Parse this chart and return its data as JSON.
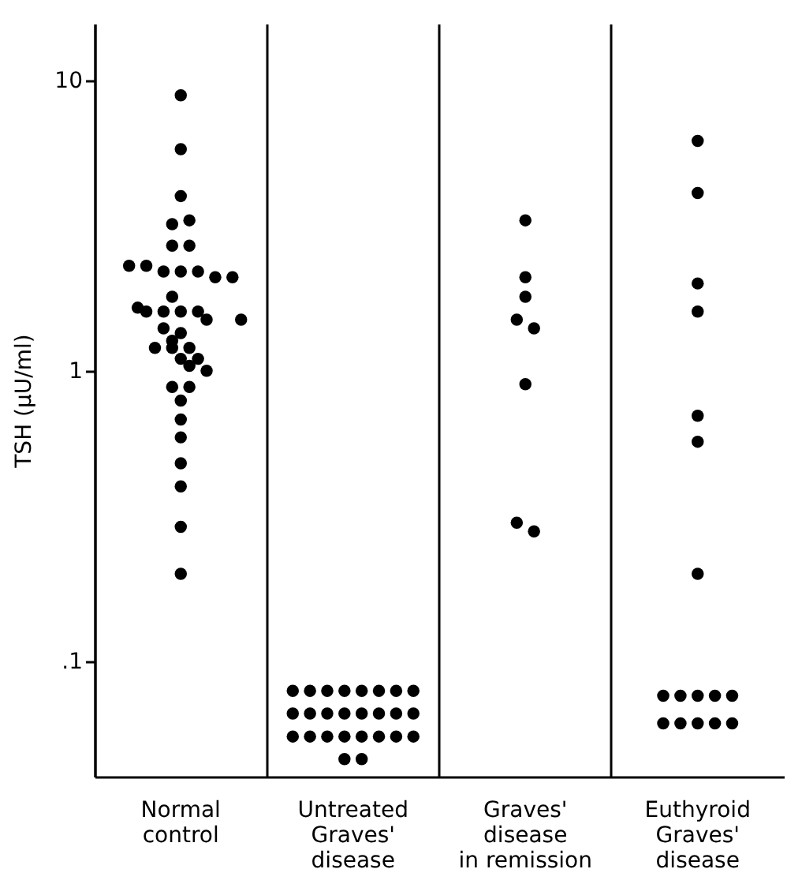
{
  "chart_data": {
    "type": "scatter",
    "ylabel": "TSH (µU/ml)",
    "categories": [
      "Normal\ncontrol",
      "Untreated\nGraves'\ndisease",
      "Graves'\ndisease\nin remission",
      "Euthyroid\nGraves'\ndisease"
    ],
    "log": true,
    "ylim": [
      0.04,
      15.7
    ],
    "yticks": [
      10,
      1,
      {
        "value": 0.1,
        "label": ".1"
      }
    ],
    "grid": "x",
    "marker": "circle",
    "series": [
      {
        "color": "#000000",
        "x": [
          "Normal\ncontrol",
          "Normal\ncontrol",
          "Normal\ncontrol",
          "Normal\ncontrol",
          "Normal\ncontrol",
          "Normal\ncontrol",
          "Normal\ncontrol",
          "Normal\ncontrol",
          "Normal\ncontrol",
          "Normal\ncontrol",
          "Normal\ncontrol",
          "Normal\ncontrol",
          "Normal\ncontrol",
          "Normal\ncontrol",
          "Normal\ncontrol",
          "Normal\ncontrol",
          "Normal\ncontrol",
          "Normal\ncontrol",
          "Normal\ncontrol",
          "Normal\ncontrol",
          "Normal\ncontrol",
          "Normal\ncontrol",
          "Normal\ncontrol",
          "Normal\ncontrol",
          "Normal\ncontrol",
          "Normal\ncontrol",
          "Normal\ncontrol",
          "Normal\ncontrol",
          "Normal\ncontrol",
          "Normal\ncontrol",
          "Normal\ncontrol",
          "Normal\ncontrol",
          "Normal\ncontrol",
          "Normal\ncontrol",
          "Normal\ncontrol",
          "Normal\ncontrol",
          "Normal\ncontrol",
          "Normal\ncontrol",
          "Normal\ncontrol",
          "Normal\ncontrol",
          "Normal\ncontrol"
        ],
        "values": [
          8.9,
          5.8,
          4.0,
          3.2,
          3.3,
          2.7,
          2.7,
          2.3,
          2.3,
          2.2,
          2.2,
          2.2,
          2.1,
          2.1,
          1.8,
          1.65,
          1.6,
          1.6,
          1.6,
          1.6,
          1.5,
          1.4,
          1.35,
          1.27,
          1.2,
          1.2,
          1.2,
          1.1,
          1.1,
          1.04,
          1.0,
          0.88,
          0.88,
          0.79,
          0.68,
          0.59,
          0.48,
          0.4,
          0.29,
          0.2,
          1.5
        ]
      },
      {
        "color": "#000000",
        "x": [
          "Untreated\nGraves'\ndisease",
          "Untreated\nGraves'\ndisease",
          "Untreated\nGraves'\ndisease",
          "Untreated\nGraves'\ndisease",
          "Untreated\nGraves'\ndisease",
          "Untreated\nGraves'\ndisease",
          "Untreated\nGraves'\ndisease",
          "Untreated\nGraves'\ndisease",
          "Untreated\nGraves'\ndisease",
          "Untreated\nGraves'\ndisease",
          "Untreated\nGraves'\ndisease",
          "Untreated\nGraves'\ndisease",
          "Untreated\nGraves'\ndisease",
          "Untreated\nGraves'\ndisease",
          "Untreated\nGraves'\ndisease",
          "Untreated\nGraves'\ndisease",
          "Untreated\nGraves'\ndisease",
          "Untreated\nGraves'\ndisease",
          "Untreated\nGraves'\ndisease",
          "Untreated\nGraves'\ndisease",
          "Untreated\nGraves'\ndisease",
          "Untreated\nGraves'\ndisease",
          "Untreated\nGraves'\ndisease",
          "Untreated\nGraves'\ndisease",
          "Untreated\nGraves'\ndisease",
          "Untreated\nGraves'\ndisease"
        ],
        "values": [
          0.079,
          0.079,
          0.079,
          0.079,
          0.079,
          0.079,
          0.079,
          0.079,
          0.066,
          0.066,
          0.066,
          0.066,
          0.066,
          0.066,
          0.066,
          0.066,
          0.055,
          0.055,
          0.055,
          0.055,
          0.055,
          0.055,
          0.055,
          0.055,
          0.046,
          0.046
        ]
      },
      {
        "color": "#000000",
        "x": [
          "Graves'\ndisease\nin remission",
          "Graves'\ndisease\nin remission",
          "Graves'\ndisease\nin remission",
          "Graves'\ndisease\nin remission",
          "Graves'\ndisease\nin remission",
          "Graves'\ndisease\nin remission",
          "Graves'\ndisease\nin remission",
          "Graves'\ndisease\nin remission"
        ],
        "values": [
          3.3,
          2.1,
          1.8,
          1.5,
          1.4,
          0.9,
          0.3,
          0.28
        ]
      },
      {
        "color": "#000000",
        "x": [
          "Euthyroid\nGraves'\ndisease",
          "Euthyroid\nGraves'\ndisease",
          "Euthyroid\nGraves'\ndisease",
          "Euthyroid\nGraves'\ndisease",
          "Euthyroid\nGraves'\ndisease",
          "Euthyroid\nGraves'\ndisease",
          "Euthyroid\nGraves'\ndisease",
          "Euthyroid\nGraves'\ndisease",
          "Euthyroid\nGraves'\ndisease",
          "Euthyroid\nGraves'\ndisease",
          "Euthyroid\nGraves'\ndisease",
          "Euthyroid\nGraves'\ndisease",
          "Euthyroid\nGraves'\ndisease",
          "Euthyroid\nGraves'\ndisease",
          "Euthyroid\nGraves'\ndisease",
          "Euthyroid\nGraves'\ndisease",
          "Euthyroid\nGraves'\ndisease"
        ],
        "values": [
          6.2,
          4.1,
          2.0,
          1.6,
          0.7,
          0.57,
          0.2,
          0.076,
          0.076,
          0.076,
          0.076,
          0.076,
          0.061,
          0.061,
          0.061,
          0.061,
          0.061
        ]
      }
    ]
  }
}
